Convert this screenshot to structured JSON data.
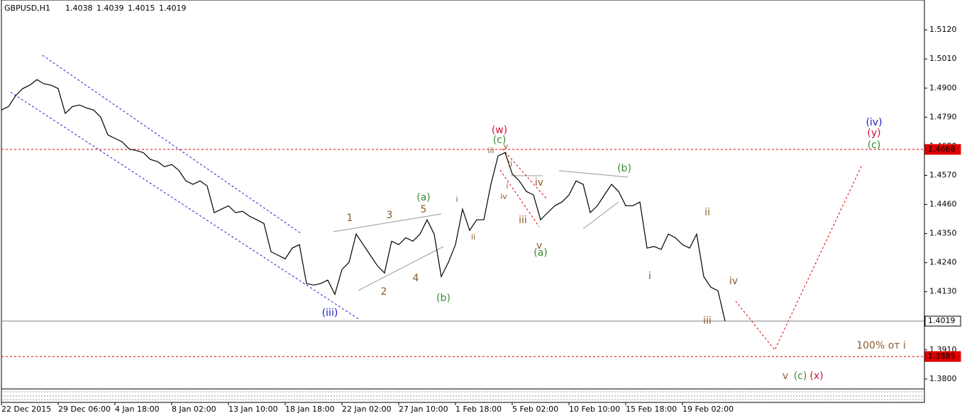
{
  "chart_data": {
    "type": "line",
    "symbol": "GBPUSD,H1",
    "ohlc": [
      1.4038,
      1.4039,
      1.4015,
      1.4019
    ],
    "categories": [
      "22 Dec 2015",
      null,
      null,
      null,
      null,
      null,
      null,
      null,
      "29 Dec 06:00",
      null,
      null,
      null,
      null,
      null,
      null,
      null,
      "4 Jan 18:00",
      null,
      null,
      null,
      null,
      null,
      null,
      null,
      "8 Jan 02:00",
      null,
      null,
      null,
      null,
      null,
      null,
      null,
      "13 Jan 10:00",
      null,
      null,
      null,
      null,
      null,
      null,
      null,
      "18 Jan 18:00",
      null,
      null,
      null,
      null,
      null,
      null,
      null,
      "22 Jan 02:00",
      null,
      null,
      null,
      null,
      null,
      null,
      null,
      "27 Jan 10:00",
      null,
      null,
      null,
      null,
      null,
      null,
      null,
      "1 Feb 18:00",
      null,
      null,
      null,
      null,
      null,
      null,
      null,
      "5 Feb 02:00",
      null,
      null,
      null,
      null,
      null,
      null,
      null,
      "10 Feb 10:00",
      null,
      null,
      null,
      null,
      null,
      null,
      null,
      "15 Feb 18:00",
      null,
      null,
      null,
      null,
      null,
      null,
      null,
      "19 Feb 02:00",
      null,
      null,
      null,
      null,
      null,
      null
    ],
    "series": [
      {
        "name": "GBPUSD",
        "color": "#000000",
        "values": [
          1.4817,
          1.483,
          1.4871,
          1.4898,
          1.4911,
          1.4932,
          1.4916,
          1.4911,
          1.4898,
          1.4804,
          1.483,
          1.4836,
          1.4825,
          1.4817,
          1.479,
          1.4723,
          1.471,
          1.4697,
          1.467,
          1.4664,
          1.4656,
          1.463,
          1.4622,
          1.4603,
          1.4611,
          1.4589,
          1.4549,
          1.4536,
          1.4549,
          1.453,
          1.4429,
          1.4442,
          1.4455,
          1.4429,
          1.4434,
          1.4415,
          1.4402,
          1.4388,
          1.4281,
          1.4268,
          1.4254,
          1.4295,
          1.4308,
          1.4161,
          1.4155,
          1.4161,
          1.4174,
          1.412,
          1.4214,
          1.4241,
          1.4348,
          1.4308,
          1.4268,
          1.4228,
          1.4201,
          1.4321,
          1.4308,
          1.4334,
          1.4321,
          1.4348,
          1.4402,
          1.4348,
          1.4187,
          1.4241,
          1.4308,
          1.4442,
          1.4362,
          1.4402,
          1.4402,
          1.4536,
          1.4643,
          1.4656,
          1.4576,
          1.4549,
          1.4509,
          1.4496,
          1.4402,
          1.4429,
          1.4455,
          1.4469,
          1.4496,
          1.4549,
          1.4536,
          1.4429,
          1.4455,
          1.4496,
          1.4536,
          1.4509,
          1.4455,
          1.4455,
          1.4469,
          1.4295,
          1.4301,
          1.429,
          1.4348,
          1.4334,
          1.4308,
          1.4295,
          1.4348,
          1.4187,
          1.4147,
          1.4134,
          1.4019
        ]
      }
    ],
    "ylim": [
      1.3765,
      1.5233
    ],
    "yticks": [
      {
        "value": 1.512,
        "label": "1.5120"
      },
      {
        "value": 1.501,
        "label": "1.5010"
      },
      {
        "value": 1.49,
        "label": "1.4900"
      },
      {
        "value": 1.479,
        "label": "1.4790"
      },
      {
        "value": 1.468,
        "label": "1.4680"
      },
      {
        "value": 1.457,
        "label": "1.4570"
      },
      {
        "value": 1.446,
        "label": "1.4460"
      },
      {
        "value": 1.435,
        "label": "1.4350"
      },
      {
        "value": 1.424,
        "label": "1.4240"
      },
      {
        "value": 1.413,
        "label": "1.4130"
      },
      {
        "value": 1.402,
        "label": "1.4020"
      },
      {
        "value": 1.391,
        "label": "1.3910"
      },
      {
        "value": 1.38,
        "label": "1.3800"
      }
    ],
    "levels": [
      {
        "value": 1.4668,
        "color": "#e00000"
      },
      {
        "value": 1.4019,
        "color": "#808080"
      },
      {
        "value": 1.3885,
        "color": "#e00000"
      }
    ],
    "annotations": [
      {
        "text": "(iii)",
        "color": "#1a1ad0"
      },
      {
        "text": "1",
        "color": "#8b5a2b"
      },
      {
        "text": "3",
        "color": "#8b5a2b"
      },
      {
        "text": "5",
        "color": "#8b5a2b"
      },
      {
        "text": "(a)",
        "color": "#3a8a3a"
      },
      {
        "text": "2",
        "color": "#8b5a2b"
      },
      {
        "text": "4",
        "color": "#8b5a2b"
      },
      {
        "text": "(b)",
        "color": "#3a8a3a"
      },
      {
        "text": "i",
        "color": "#8b5a2b"
      },
      {
        "text": "ii",
        "color": "#8b5a2b"
      },
      {
        "text": "(w)",
        "color": "#d01030"
      },
      {
        "text": "(c)",
        "color": "#3a8a3a"
      },
      {
        "text": "v",
        "color": "#8b5a2b"
      },
      {
        "text": "iii",
        "color": "#8b5a2b"
      },
      {
        "text": "ii",
        "color": "#8b5a2b"
      },
      {
        "text": "i",
        "color": "#8b5a2b"
      },
      {
        "text": "iv",
        "color": "#8b5a2b"
      },
      {
        "text": "iv",
        "color": "#8b5a2b"
      },
      {
        "text": "v",
        "color": "#8b5a2b"
      },
      {
        "text": "iii",
        "color": "#8b5a2b"
      },
      {
        "text": "(a)",
        "color": "#3a8a3a"
      },
      {
        "text": "(b)",
        "color": "#3a8a3a"
      },
      {
        "text": "ii",
        "color": "#8b5a2b"
      },
      {
        "text": "i",
        "color": "#8b5a2b"
      },
      {
        "text": "iii",
        "color": "#8b5a2b"
      },
      {
        "text": "iv",
        "color": "#8b5a2b"
      },
      {
        "text": "(iv)",
        "color": "#1a1ad0"
      },
      {
        "text": "(y)",
        "color": "#d01030"
      },
      {
        "text": "(c)",
        "color": "#3a8a3a"
      },
      {
        "text": "100% от i",
        "color": "#8b5a2b"
      },
      {
        "text": "v",
        "color": "#8b5a2b"
      },
      {
        "text": "(c)",
        "color": "#3a8a3a"
      },
      {
        "text": "(x)",
        "color": "#d01030"
      }
    ]
  }
}
